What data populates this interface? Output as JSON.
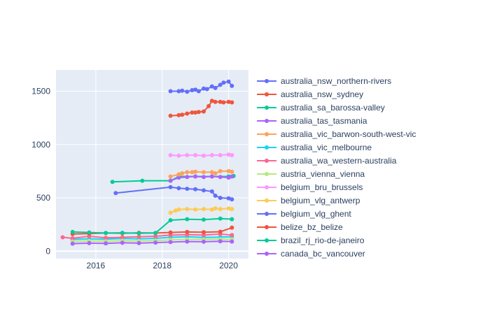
{
  "chart_data": {
    "type": "line",
    "title": "",
    "xlabel": "",
    "ylabel": "",
    "xlim": [
      2014.8,
      2020.6
    ],
    "ylim": [
      -70,
      1700
    ],
    "x_ticks": [
      2016,
      2018,
      2020
    ],
    "y_ticks": [
      0,
      500,
      1000,
      1500
    ],
    "grid": true,
    "legend_position": "right",
    "series": [
      {
        "name": "australia_nsw_northern-rivers",
        "color": "#636efa",
        "x": [
          2018.25,
          2018.5,
          2018.6,
          2018.75,
          2018.9,
          2019.0,
          2019.1,
          2019.25,
          2019.35,
          2019.5,
          2019.6,
          2019.75,
          2019.85,
          2020.0,
          2020.1
        ],
        "y": [
          1500,
          1500,
          1505,
          1495,
          1510,
          1515,
          1500,
          1525,
          1520,
          1545,
          1530,
          1560,
          1580,
          1590,
          1550
        ]
      },
      {
        "name": "australia_nsw_sydney",
        "color": "#EF553B",
        "x": [
          2018.25,
          2018.5,
          2018.6,
          2018.75,
          2018.9,
          2019.0,
          2019.1,
          2019.25,
          2019.4,
          2019.5,
          2019.6,
          2019.75,
          2019.85,
          2020.0,
          2020.1
        ],
        "y": [
          1270,
          1275,
          1280,
          1290,
          1300,
          1300,
          1305,
          1310,
          1360,
          1410,
          1400,
          1400,
          1395,
          1400,
          1395
        ]
      },
      {
        "name": "australia_sa_barossa-valley",
        "color": "#00cc96",
        "x": [
          2016.5,
          2017.4,
          2018.25,
          2018.5,
          2019.0,
          2019.5,
          2020.0,
          2020.15
        ],
        "y": [
          650,
          660,
          660,
          700,
          700,
          700,
          700,
          705
        ]
      },
      {
        "name": "australia_tas_tasmania",
        "color": "#ab63fa",
        "x": [
          2018.25,
          2018.5,
          2018.75,
          2019.0,
          2019.25,
          2019.5,
          2019.75,
          2020.0,
          2020.1
        ],
        "y": [
          660,
          690,
          695,
          700,
          695,
          700,
          695,
          690,
          700
        ]
      },
      {
        "name": "australia_vic_barwon-south-west-vic",
        "color": "#FFA15A",
        "x": [
          2018.25,
          2018.5,
          2018.6,
          2018.75,
          2018.9,
          2019.0,
          2019.25,
          2019.5,
          2019.6,
          2019.75,
          2020.0,
          2020.1
        ],
        "y": [
          700,
          720,
          730,
          740,
          740,
          745,
          740,
          740,
          730,
          750,
          750,
          745
        ]
      },
      {
        "name": "australia_vic_melbourne",
        "color": "#19d3f3",
        "x": [
          2015.3,
          2015.8,
          2016.3,
          2016.8,
          2017.3,
          2017.8,
          2018.25,
          2018.75,
          2019.25,
          2019.75,
          2020.1
        ],
        "y": [
          110,
          115,
          112,
          118,
          115,
          120,
          130,
          135,
          128,
          132,
          135
        ]
      },
      {
        "name": "australia_wa_western-australia",
        "color": "#FF6692",
        "x": [
          2015.0,
          2015.3,
          2015.8,
          2016.3,
          2016.8,
          2017.3,
          2017.8,
          2018.25,
          2018.75,
          2019.25,
          2019.75,
          2020.1
        ],
        "y": [
          130,
          120,
          140,
          125,
          130,
          135,
          140,
          150,
          155,
          150,
          160,
          150
        ]
      },
      {
        "name": "austria_vienna_vienna",
        "color": "#B6E880",
        "x": [
          2015.3,
          2015.8,
          2016.3,
          2016.8,
          2017.3,
          2017.8,
          2018.25,
          2018.75,
          2019.25,
          2019.75,
          2020.1
        ],
        "y": [
          90,
          95,
          92,
          98,
          95,
          100,
          105,
          110,
          108,
          112,
          110
        ]
      },
      {
        "name": "belgium_bru_brussels",
        "color": "#FF97FF",
        "x": [
          2018.25,
          2018.5,
          2018.75,
          2019.0,
          2019.25,
          2019.5,
          2019.75,
          2020.0,
          2020.1
        ],
        "y": [
          900,
          895,
          900,
          900,
          895,
          900,
          900,
          905,
          900
        ]
      },
      {
        "name": "belgium_vlg_antwerp",
        "color": "#FECB52",
        "x": [
          2018.25,
          2018.4,
          2018.5,
          2018.75,
          2019.0,
          2019.25,
          2019.5,
          2019.6,
          2019.75,
          2020.0,
          2020.1
        ],
        "y": [
          360,
          380,
          390,
          395,
          390,
          395,
          390,
          400,
          395,
          400,
          395
        ]
      },
      {
        "name": "belgium_vlg_ghent",
        "color": "#636efa",
        "x": [
          2016.6,
          2018.25,
          2018.5,
          2018.75,
          2019.0,
          2019.25,
          2019.5,
          2019.6,
          2019.75,
          2020.0,
          2020.1
        ],
        "y": [
          545,
          600,
          590,
          585,
          580,
          570,
          560,
          520,
          500,
          495,
          485
        ]
      },
      {
        "name": "belize_bz_belize",
        "color": "#EF553B",
        "x": [
          2015.3,
          2015.8,
          2016.3,
          2016.8,
          2017.3,
          2017.8,
          2018.25,
          2018.75,
          2019.25,
          2019.75,
          2020.1
        ],
        "y": [
          160,
          165,
          170,
          168,
          172,
          170,
          175,
          180,
          178,
          182,
          220
        ]
      },
      {
        "name": "brazil_rj_rio-de-janeiro",
        "color": "#00cc96",
        "x": [
          2015.3,
          2015.8,
          2016.3,
          2016.8,
          2017.3,
          2017.8,
          2018.25,
          2018.75,
          2019.25,
          2019.75,
          2020.1
        ],
        "y": [
          180,
          175,
          170,
          172,
          168,
          170,
          290,
          300,
          295,
          305,
          300
        ]
      },
      {
        "name": "canada_bc_vancouver",
        "color": "#ab63fa",
        "x": [
          2015.3,
          2015.8,
          2016.3,
          2016.8,
          2017.3,
          2017.8,
          2018.25,
          2018.75,
          2019.25,
          2019.75,
          2020.1
        ],
        "y": [
          70,
          75,
          72,
          78,
          75,
          80,
          85,
          90,
          88,
          92,
          90
        ]
      }
    ]
  }
}
